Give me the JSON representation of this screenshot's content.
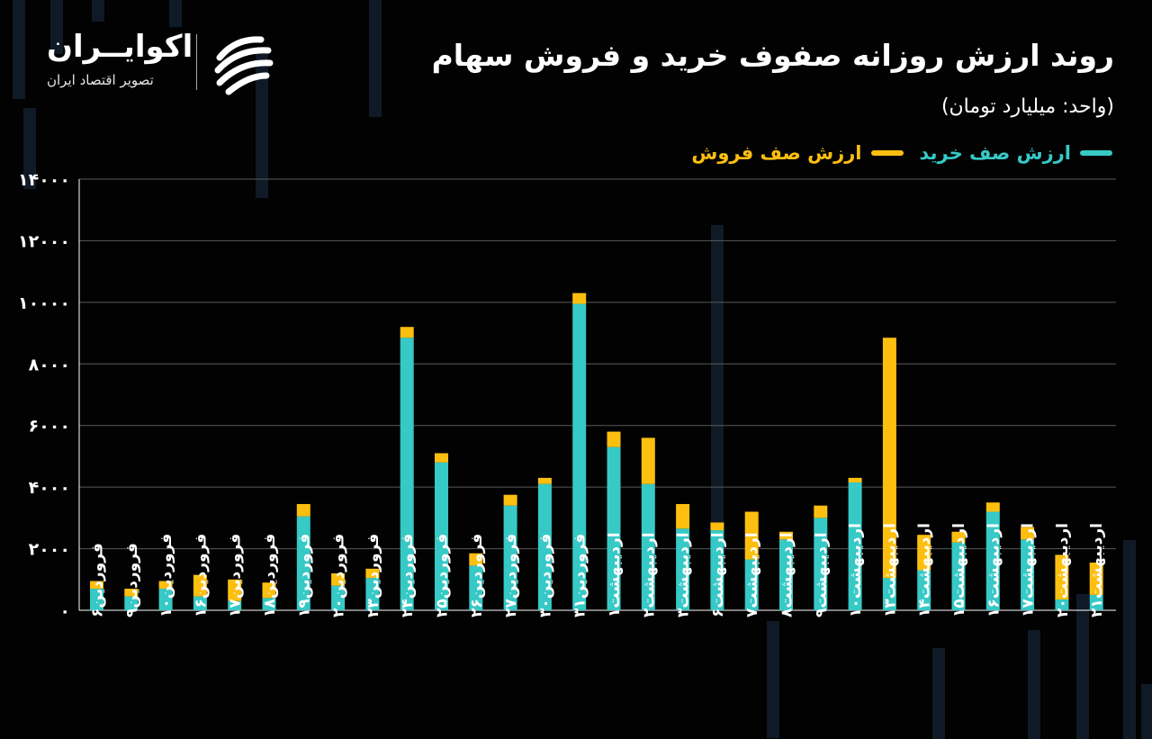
{
  "header": {
    "title": "روند ارزش روزانه صفوف خرید و فروش سهام",
    "unit": "(واحد: میلیارد تومان)"
  },
  "brand": {
    "name": "اکوایــران",
    "tagline": "تصویر اقتصاد ایران"
  },
  "legend": {
    "buy_label": "ارزش صف خرید",
    "sell_label": "ارزش صف فروش"
  },
  "colors": {
    "buy": "#36c9c6",
    "sell": "#fdbf0f",
    "background": "#020203",
    "grid": "#5a5a5a"
  },
  "chart_data": {
    "type": "bar",
    "stacked": true,
    "title": "روند ارزش روزانه صفوف خرید و فروش سهام",
    "subtitle": "(واحد: میلیارد تومان)",
    "ylim": [
      0,
      14000
    ],
    "yticks": [
      0,
      2000,
      4000,
      6000,
      8000,
      10000,
      12000,
      14000
    ],
    "ytick_labels": [
      "۰",
      "۲۰۰۰",
      "۴۰۰۰",
      "۶۰۰۰",
      "۸۰۰۰",
      "۱۰۰۰۰",
      "۱۲۰۰۰",
      "۱۴۰۰۰"
    ],
    "grid": true,
    "legend_position": "top-right",
    "categories": [
      "فروردین۶",
      "فروردین۹",
      "فروردین۱۰",
      "فروردین۱۶",
      "فروردین۱۷",
      "فروردین۱۸",
      "فروردین۱۹",
      "فروردین۲۰",
      "فروردین۲۳",
      "فروردین۲۴",
      "فروردین۲۵",
      "فروردین۲۶",
      "فروردین۲۷",
      "فروردین۳۰",
      "فروردین۳۱",
      "اردیبهشت۱",
      "اردیبهشت۲",
      "اردیبهشت۳",
      "اردیبهشت۶",
      "اردیبهشت۷",
      "اردیبهشت۸",
      "اردیبهشت۹",
      "اردیبهشت۱۰",
      "اردیبهشت۱۳",
      "اردیبهشت۱۴",
      "اردیبهشت۱۵",
      "اردیبهشت۱۶",
      "اردیبهشت۱۷",
      "اردیبهشت۲۰",
      "اردیبهشت۲۱"
    ],
    "series": [
      {
        "name": "ارزش صف خرید",
        "values": [
          700,
          450,
          700,
          450,
          300,
          400,
          3050,
          800,
          1050,
          8850,
          4800,
          1450,
          3400,
          4100,
          9950,
          5300,
          4100,
          2650,
          2600,
          1650,
          2300,
          3000,
          4150,
          1050,
          1300,
          2200,
          3200,
          2300,
          350,
          500
        ]
      },
      {
        "name": "ارزش صف فروش",
        "values": [
          250,
          250,
          250,
          700,
          700,
          500,
          400,
          400,
          300,
          350,
          300,
          400,
          350,
          200,
          350,
          500,
          1500,
          800,
          250,
          1550,
          250,
          400,
          150,
          7800,
          1150,
          350,
          300,
          400,
          1450,
          1050
        ]
      }
    ]
  }
}
